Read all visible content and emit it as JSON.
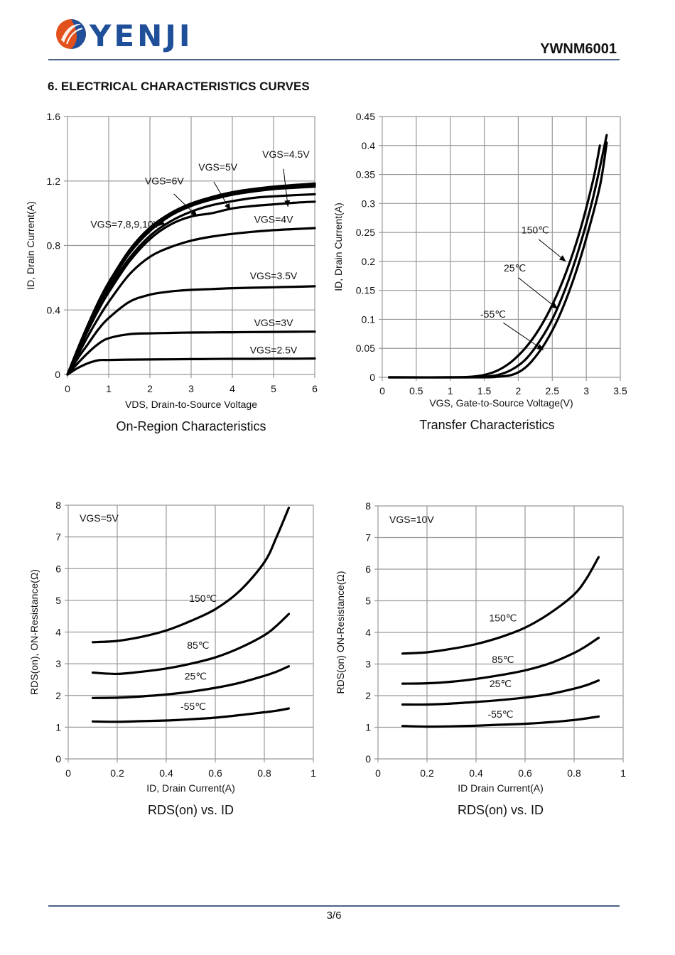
{
  "header": {
    "brand": "YENJI",
    "part_number": "YWNM6001",
    "logo_colors": {
      "orange": "#e2501c",
      "blue": "#1f4f99"
    }
  },
  "section_title": "6. ELECTRICAL CHARACTERISTICS CURVES",
  "footer": {
    "page": "3/6"
  },
  "chart_data": [
    {
      "id": "on-region",
      "type": "line",
      "title": "On-Region Characteristics",
      "xlabel": "VDS, Drain-to-Source Voltage",
      "ylabel": "ID, Drain Current(A)",
      "xlim": [
        0,
        6
      ],
      "ylim": [
        0,
        1.6
      ],
      "xticks": [
        "0",
        "1",
        "2",
        "3",
        "4",
        "5",
        "6"
      ],
      "yticks": [
        "0",
        "0.4",
        "0.8",
        "1.2",
        "1.6"
      ],
      "grid": true,
      "x": [
        0,
        0.25,
        0.5,
        0.75,
        1,
        1.5,
        2,
        2.5,
        3,
        3.5,
        4,
        4.5,
        5,
        5.5,
        6
      ],
      "series": [
        {
          "name": "VGS=10V",
          "values": [
            0,
            0.16,
            0.31,
            0.45,
            0.57,
            0.77,
            0.91,
            1.0,
            1.06,
            1.1,
            1.13,
            1.15,
            1.165,
            1.175,
            1.185
          ]
        },
        {
          "name": "VGS=9V",
          "values": [
            0,
            0.16,
            0.31,
            0.45,
            0.57,
            0.77,
            0.91,
            1.0,
            1.06,
            1.1,
            1.13,
            1.15,
            1.16,
            1.17,
            1.18
          ]
        },
        {
          "name": "VGS=8V",
          "values": [
            0,
            0.155,
            0.305,
            0.44,
            0.56,
            0.76,
            0.9,
            0.995,
            1.055,
            1.095,
            1.125,
            1.145,
            1.16,
            1.17,
            1.178
          ]
        },
        {
          "name": "VGS=7V",
          "values": [
            0,
            0.155,
            0.3,
            0.435,
            0.555,
            0.755,
            0.895,
            0.99,
            1.05,
            1.09,
            1.12,
            1.14,
            1.155,
            1.165,
            1.172
          ]
        },
        {
          "name": "VGS=6V",
          "values": [
            0,
            0.15,
            0.295,
            0.43,
            0.55,
            0.75,
            0.89,
            0.985,
            1.045,
            1.085,
            1.115,
            1.135,
            1.15,
            1.158,
            1.165
          ]
        },
        {
          "name": "VGS=5V",
          "values": [
            0,
            0.145,
            0.285,
            0.415,
            0.53,
            0.72,
            0.86,
            0.95,
            1.01,
            1.05,
            1.075,
            1.095,
            1.105,
            1.112,
            1.118
          ]
        },
        {
          "name": "VGS=4.5V",
          "values": [
            0,
            0.14,
            0.275,
            0.4,
            0.51,
            0.7,
            0.84,
            0.93,
            0.98,
            1.0,
            1.03,
            1.045,
            1.055,
            1.065,
            1.072
          ]
        },
        {
          "name": "VGS=4V",
          "values": [
            0,
            0.12,
            0.24,
            0.35,
            0.45,
            0.62,
            0.73,
            0.79,
            0.83,
            0.855,
            0.872,
            0.885,
            0.895,
            0.902,
            0.908
          ]
        },
        {
          "name": "VGS=3.5V",
          "values": [
            0,
            0.1,
            0.19,
            0.28,
            0.35,
            0.45,
            0.495,
            0.515,
            0.525,
            0.53,
            0.535,
            0.538,
            0.541,
            0.544,
            0.547
          ]
        },
        {
          "name": "VGS=3V",
          "values": [
            0,
            0.07,
            0.135,
            0.19,
            0.225,
            0.25,
            0.255,
            0.258,
            0.26,
            0.261,
            0.262,
            0.263,
            0.264,
            0.265,
            0.266
          ]
        },
        {
          "name": "VGS=2.5V",
          "values": [
            0,
            0.04,
            0.07,
            0.088,
            0.09,
            0.092,
            0.093,
            0.094,
            0.095,
            0.096,
            0.097,
            0.097,
            0.098,
            0.098,
            0.099
          ]
        }
      ],
      "annotations": [
        {
          "text": "VGS=4.5V",
          "x": 5.3,
          "y": 1.345
        },
        {
          "text": "VGS=5V",
          "x": 3.65,
          "y": 1.265
        },
        {
          "text": "VGS=6V",
          "x": 2.35,
          "y": 1.18
        },
        {
          "text": "VGS=7,8,9,10V",
          "x": 1.4,
          "y": 0.91
        },
        {
          "text": "VGS=4V",
          "x": 5.0,
          "y": 0.94
        },
        {
          "text": "VGS=3.5V",
          "x": 5.0,
          "y": 0.59
        },
        {
          "text": "VGS=3V",
          "x": 5.0,
          "y": 0.3
        },
        {
          "text": "VGS=2.5V",
          "x": 5.0,
          "y": 0.13
        }
      ],
      "arrows": [
        {
          "from": [
            5.24,
            1.275
          ],
          "to": [
            5.35,
            1.04
          ]
        },
        {
          "from": [
            3.55,
            1.195
          ],
          "to": [
            3.95,
            1.02
          ]
        },
        {
          "from": [
            2.58,
            1.12
          ],
          "to": [
            3.15,
            0.98
          ]
        },
        {
          "from": [
            2.35,
            0.955
          ],
          "to": [
            2.2,
            0.92
          ]
        }
      ]
    },
    {
      "id": "transfer",
      "type": "line",
      "title": "Transfer Characteristics",
      "xlabel": "VGS, Gate-to-Source Voltage(V)",
      "ylabel": "ID, Drain Current(A)",
      "xlim": [
        0,
        3.5
      ],
      "ylim": [
        0,
        0.45
      ],
      "xticks": [
        "0",
        "0.5",
        "1",
        "1.5",
        "2",
        "2.5",
        "3",
        "3.5"
      ],
      "yticks": [
        "0",
        "0.05",
        "0.1",
        "0.15",
        "0.2",
        "0.25",
        "0.3",
        "0.35",
        "0.4",
        "0.45"
      ],
      "grid": true,
      "series": [
        {
          "name": "150℃",
          "x": [
            0.1,
            1.0,
            1.3,
            1.5,
            1.7,
            1.9,
            2.1,
            2.3,
            2.5,
            2.7,
            2.9,
            3.1,
            3.2
          ],
          "values": [
            0,
            0,
            0.001,
            0.004,
            0.012,
            0.027,
            0.05,
            0.082,
            0.125,
            0.18,
            0.25,
            0.34,
            0.4
          ]
        },
        {
          "name": "25℃",
          "x": [
            0.1,
            1.2,
            1.5,
            1.7,
            1.9,
            2.1,
            2.3,
            2.5,
            2.7,
            2.9,
            3.1,
            3.3
          ],
          "values": [
            0,
            0,
            0.001,
            0.004,
            0.013,
            0.03,
            0.06,
            0.1,
            0.155,
            0.225,
            0.31,
            0.418
          ]
        },
        {
          "name": "-55℃",
          "x": [
            0.1,
            1.4,
            1.7,
            1.9,
            2.05,
            2.2,
            2.4,
            2.6,
            2.8,
            3.0,
            3.2,
            3.3
          ],
          "values": [
            0,
            0,
            0.001,
            0.004,
            0.012,
            0.028,
            0.06,
            0.105,
            0.165,
            0.24,
            0.33,
            0.405
          ]
        }
      ],
      "annotations": [
        {
          "text": "150℃",
          "x": 2.25,
          "y": 0.248
        },
        {
          "text": "25℃",
          "x": 1.95,
          "y": 0.183
        },
        {
          "text": "-55℃",
          "x": 1.63,
          "y": 0.103
        }
      ],
      "arrows": [
        {
          "from": [
            2.3,
            0.238
          ],
          "to": [
            2.7,
            0.2
          ]
        },
        {
          "from": [
            2.0,
            0.172
          ],
          "to": [
            2.58,
            0.118
          ]
        },
        {
          "from": [
            1.78,
            0.094
          ],
          "to": [
            2.37,
            0.047
          ]
        }
      ]
    },
    {
      "id": "rds-vgs5",
      "type": "line",
      "title": "RDS(on) vs.  ID",
      "xlabel": "ID, Drain Current(A)",
      "ylabel": "RDS(on), ON-Resistance(Ω)",
      "xlim": [
        0,
        1
      ],
      "ylim": [
        0,
        8
      ],
      "xticks": [
        "0",
        "0.2",
        "0.4",
        "0.6",
        "0.8",
        "1"
      ],
      "yticks": [
        "0",
        "1",
        "2",
        "3",
        "4",
        "5",
        "6",
        "7",
        "8"
      ],
      "grid": true,
      "inset_label": "VGS=5V",
      "x": [
        0.1,
        0.2,
        0.3,
        0.4,
        0.5,
        0.6,
        0.7,
        0.8,
        0.85,
        0.9
      ],
      "series": [
        {
          "name": "150℃",
          "values": [
            3.68,
            3.72,
            3.85,
            4.05,
            4.35,
            4.72,
            5.3,
            6.2,
            7.0,
            7.92
          ]
        },
        {
          "name": "85℃",
          "values": [
            2.72,
            2.68,
            2.75,
            2.85,
            3.0,
            3.2,
            3.5,
            3.9,
            4.2,
            4.57
          ]
        },
        {
          "name": "25℃",
          "values": [
            1.92,
            1.93,
            1.97,
            2.03,
            2.12,
            2.24,
            2.4,
            2.62,
            2.75,
            2.92
          ]
        },
        {
          "name": "-55℃",
          "values": [
            1.18,
            1.17,
            1.19,
            1.21,
            1.25,
            1.3,
            1.38,
            1.47,
            1.52,
            1.59
          ]
        }
      ],
      "annotations": [
        {
          "text": "150℃",
          "x": 0.55,
          "y": 4.95
        },
        {
          "text": "85℃",
          "x": 0.53,
          "y": 3.47
        },
        {
          "text": "25℃",
          "x": 0.52,
          "y": 2.5
        },
        {
          "text": "-55℃",
          "x": 0.51,
          "y": 1.55
        }
      ]
    },
    {
      "id": "rds-vgs10",
      "type": "line",
      "title": "RDS(on) vs.  ID",
      "xlabel": "ID Drain Current(A)",
      "ylabel": "RDS(on) ON-Resistance(Ω)",
      "xlim": [
        0,
        1
      ],
      "ylim": [
        0,
        8
      ],
      "xticks": [
        "0",
        "0.2",
        "0.4",
        "0.6",
        "0.8",
        "1"
      ],
      "yticks": [
        "0",
        "1",
        "2",
        "3",
        "4",
        "5",
        "6",
        "7",
        "8"
      ],
      "grid": true,
      "inset_label": "VGS=10V",
      "x": [
        0.1,
        0.2,
        0.3,
        0.4,
        0.5,
        0.6,
        0.7,
        0.8,
        0.85,
        0.9
      ],
      "series": [
        {
          "name": "150℃",
          "values": [
            3.33,
            3.37,
            3.48,
            3.63,
            3.85,
            4.15,
            4.6,
            5.2,
            5.7,
            6.38
          ]
        },
        {
          "name": "85℃",
          "values": [
            2.38,
            2.39,
            2.44,
            2.53,
            2.65,
            2.8,
            3.02,
            3.35,
            3.57,
            3.83
          ]
        },
        {
          "name": "25℃",
          "values": [
            1.72,
            1.72,
            1.75,
            1.8,
            1.86,
            1.94,
            2.05,
            2.22,
            2.33,
            2.48
          ]
        },
        {
          "name": "-55℃",
          "values": [
            1.04,
            1.02,
            1.03,
            1.05,
            1.08,
            1.11,
            1.16,
            1.23,
            1.28,
            1.34
          ]
        }
      ],
      "annotations": [
        {
          "text": "150℃",
          "x": 0.51,
          "y": 4.35
        },
        {
          "text": "85℃",
          "x": 0.51,
          "y": 3.03
        },
        {
          "text": "25℃",
          "x": 0.5,
          "y": 2.27
        },
        {
          "text": "-55℃",
          "x": 0.5,
          "y": 1.3
        }
      ]
    }
  ]
}
